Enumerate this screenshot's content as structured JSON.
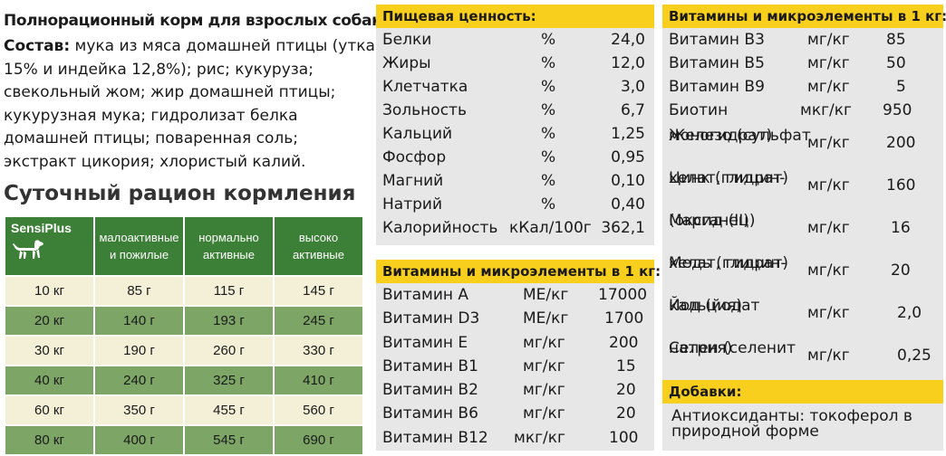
{
  "product_title": "Полнорационный корм для взрослых собак",
  "composition": {
    "label": "Состав:",
    "text": " мука из мяса домашней птицы (утка 15% и индейка 12,8%); рис; кукуруза; свекольный жом; жир домашней птицы; кукурузная мука; гидролизат белка домашней птицы; поваренная соль; экстракт цикория; хлористый калий."
  },
  "ration": {
    "title": "Суточный рацион кормления",
    "brand": "SensiPlus",
    "headers": [
      "малоактивные и пожилые",
      "нормально активные",
      "высоко активные"
    ],
    "rows": [
      [
        "10 кг",
        "85 г",
        "115 г",
        "145 г"
      ],
      [
        "20 кг",
        "140 г",
        "193 г",
        "245 г"
      ],
      [
        "30 кг",
        "190 г",
        "260 г",
        "330 г"
      ],
      [
        "40 кг",
        "240 г",
        "325 г",
        "410 г"
      ],
      [
        "60 кг",
        "350 г",
        "455 г",
        "560 г"
      ],
      [
        "80 кг",
        "400 г",
        "545 г",
        "690 г"
      ]
    ]
  },
  "nutrition": {
    "title": "Пищевая ценность:",
    "rows": [
      [
        "Белки",
        "%",
        "24,0"
      ],
      [
        "Жиры",
        "%",
        "12,0"
      ],
      [
        "Клетчатка",
        "%",
        "3,0"
      ],
      [
        "Зольность",
        "%",
        "6,7"
      ],
      [
        "Кальций",
        "%",
        "1,25"
      ],
      [
        "Фосфор",
        "%",
        "0,95"
      ],
      [
        "Магний",
        "%",
        "0,10"
      ],
      [
        "Натрий",
        "%",
        "0,40"
      ],
      [
        "Калорийность",
        "кКал/100г",
        "362,1"
      ]
    ]
  },
  "vitamins1": {
    "title": "Витамины и микроэлементы в 1 кг:",
    "rows": [
      [
        "Витамин A",
        "МЕ/кг",
        "17000"
      ],
      [
        "Витамин D3",
        "МЕ/кг",
        "1700"
      ],
      [
        "Витамин E",
        "мг/кг",
        "200"
      ],
      [
        "Витамин B1",
        "мг/кг",
        "15"
      ],
      [
        "Витамин B2",
        "мг/кг",
        "20"
      ],
      [
        "Витамин B6",
        "мг/кг",
        "20"
      ],
      [
        "Витамин B12",
        "мкг/кг",
        "100"
      ]
    ]
  },
  "vitamins2": {
    "title": "Витамины и микроэлементы в 1 кг:",
    "rows": [
      [
        "Витамин B3",
        "мг/кг",
        "85"
      ],
      [
        "Витамин B5",
        "мг/кг",
        "50"
      ],
      [
        "Витамин B9",
        "мг/кг",
        "5"
      ],
      [
        "Биотин",
        "мкг/кг",
        "950"
      ],
      [
        "Железо (сульфат\nмоногидрат)",
        "мг/кг",
        "200"
      ],
      [
        "Цинк (глицин-\nхелат, гидрат)",
        "мг/кг",
        "160"
      ],
      [
        "Марганец\n(оксид-(II))",
        "мг/кг",
        "16"
      ],
      [
        "Медь (глицин-\nхелат, гидрат)",
        "мг/кг",
        "20"
      ],
      [
        "Йод (йодат\nкальция)",
        "мг/кг",
        "2,0"
      ],
      [
        "Селен (селенит\nнатрия)",
        "мг/кг",
        "0,25"
      ]
    ]
  },
  "additives": {
    "title": "Добавки:",
    "text": "Антиоксиданты: токоферол в природной форме"
  },
  "colors": {
    "header_yellow": "#f9cf1e",
    "panel_gray": "#e7e7e7",
    "table_green_dark": "#3c7f36",
    "table_green_light": "#7ca566",
    "table_cream": "#f3f0d7"
  }
}
